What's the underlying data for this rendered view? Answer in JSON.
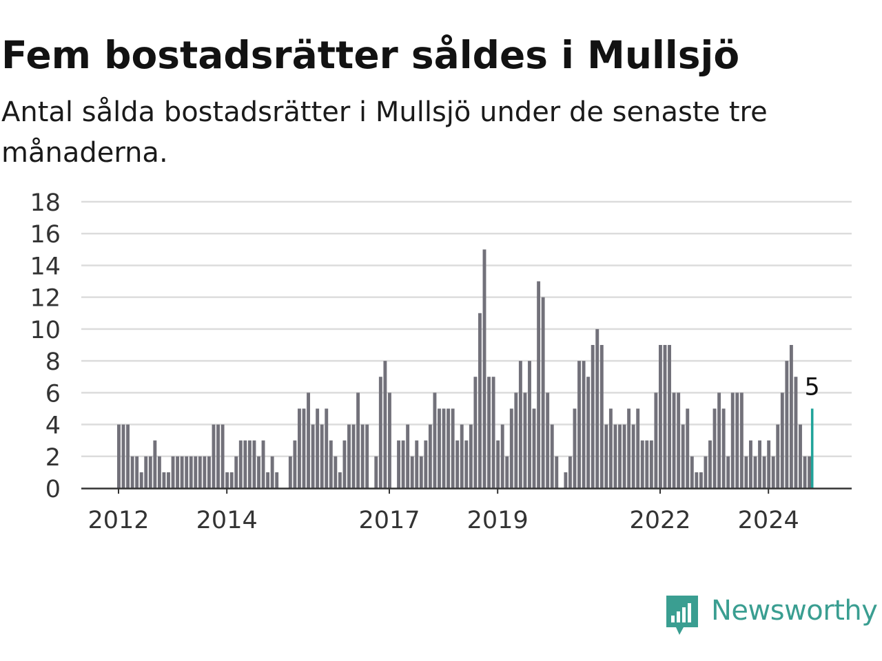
{
  "title": "Fem bostadsrätter såldes i Mullsjö",
  "subtitle": "Antal sålda bostadsrätter i Mullsjö under de senaste tre månaderna.",
  "brand": {
    "name": "Newsworthy",
    "color": "#3a9e91",
    "icon": "newsworthy-logo-icon"
  },
  "colors": {
    "bar": "#72717a",
    "highlight": "#20a39a",
    "grid": "#dcdcdc",
    "axis": "#333333"
  },
  "chart_data": {
    "type": "bar",
    "x_unit": "month",
    "start_month": "2011-01",
    "end_month": "2024-12",
    "values": [
      null,
      null,
      null,
      null,
      null,
      null,
      null,
      null,
      null,
      null,
      null,
      null,
      4,
      4,
      4,
      2,
      2,
      1,
      2,
      2,
      3,
      2,
      1,
      1,
      2,
      2,
      2,
      2,
      2,
      2,
      2,
      2,
      2,
      4,
      4,
      4,
      1,
      1,
      2,
      3,
      3,
      3,
      3,
      2,
      3,
      1,
      2,
      1,
      null,
      null,
      2,
      3,
      5,
      5,
      6,
      4,
      5,
      4,
      5,
      3,
      2,
      1,
      3,
      4,
      4,
      6,
      4,
      4,
      null,
      2,
      7,
      8,
      6,
      null,
      3,
      3,
      4,
      2,
      3,
      2,
      3,
      4,
      6,
      5,
      5,
      5,
      5,
      3,
      4,
      3,
      4,
      7,
      11,
      15,
      7,
      7,
      3,
      4,
      2,
      5,
      6,
      8,
      6,
      8,
      5,
      13,
      12,
      6,
      4,
      2,
      null,
      1,
      2,
      5,
      8,
      8,
      7,
      9,
      10,
      9,
      4,
      5,
      4,
      4,
      4,
      5,
      4,
      5,
      3,
      3,
      3,
      6,
      9,
      9,
      9,
      6,
      6,
      4,
      5,
      2,
      1,
      1,
      2,
      3,
      5,
      6,
      5,
      2,
      6,
      6,
      6,
      2,
      3,
      2,
      3,
      2,
      3,
      2,
      4,
      6,
      8,
      9,
      7,
      4,
      2,
      2,
      5,
      null
    ],
    "highlight_index": 166,
    "highlight_label": "5",
    "ylim": [
      0,
      18
    ],
    "yticks": [
      "0",
      "2",
      "4",
      "6",
      "8",
      "10",
      "12",
      "14",
      "16",
      "18"
    ],
    "xticks": [
      {
        "label": "2012",
        "month": "2012-01"
      },
      {
        "label": "2014",
        "month": "2014-01"
      },
      {
        "label": "2017",
        "month": "2017-01"
      },
      {
        "label": "2019",
        "month": "2019-01"
      },
      {
        "label": "2022",
        "month": "2022-01"
      },
      {
        "label": "2024",
        "month": "2024-01"
      }
    ],
    "grid": true,
    "legend": "none",
    "xlabel": "",
    "ylabel": ""
  }
}
